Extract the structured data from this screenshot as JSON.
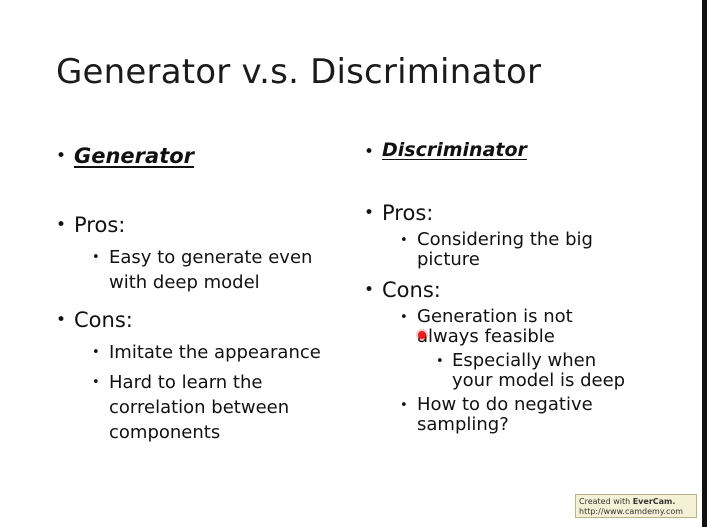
{
  "slide": {
    "title": "Generator v.s. Discriminator",
    "left_column": {
      "heading": "Generator",
      "pros_label": "Pros:",
      "pros": [
        [
          "Easy to generate even",
          "with deep model"
        ]
      ],
      "cons_label": "Cons:",
      "cons": [
        [
          "Imitate the appearance"
        ],
        [
          "Hard to learn the",
          "correlation between",
          "components"
        ]
      ]
    },
    "right_column": {
      "heading": "Discriminator",
      "pros_label": "Pros:",
      "pros": [
        [
          "Considering the big",
          "picture"
        ]
      ],
      "cons_label": "Cons:",
      "cons": [
        {
          "lines": [
            "Generation is not",
            "always feasible"
          ],
          "sub": [
            [
              "Especially when",
              "your model is deep"
            ]
          ]
        },
        {
          "lines": [
            "How to do negative",
            "sampling?"
          ]
        }
      ]
    }
  },
  "watermark": {
    "prefix": "Created with ",
    "brand": "EverCam.",
    "url": "http://www.camdemy.com"
  },
  "colors": {
    "text": "#111111",
    "pointer_dot": "#e02020",
    "watermark_bg": "#f4f1d6"
  }
}
